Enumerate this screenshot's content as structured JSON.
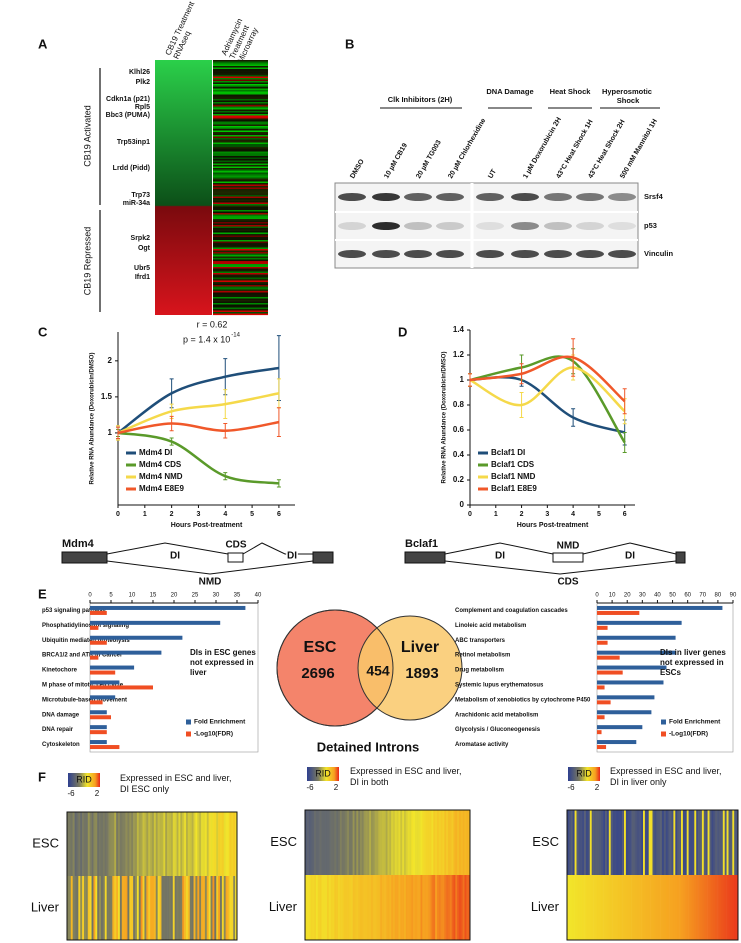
{
  "panel_labels": [
    "A",
    "B",
    "C",
    "D",
    "E",
    "F"
  ],
  "panel_a": {
    "columns": [
      "CB19 Treatment RNAseq",
      "Adriamycin Treatment Microarray"
    ],
    "genes": [
      "Klhl26",
      "Plk2",
      "Cdkn1a (p21)",
      "Rpl5",
      "Bbc3 (PUMA)",
      "Trp53inp1",
      "Lrdd (Pidd)",
      "Trp73",
      "miR-34a",
      "Srpk2",
      "Ogt",
      "Ubr5",
      "Ifrd1"
    ],
    "groups": [
      "CB19 Activated",
      "CB19 Repressed"
    ],
    "correlation": "r = 0.62",
    "p_value": "p = 1.4 x 10",
    "p_exponent": "-14"
  },
  "panel_b": {
    "groups": [
      "Clk Inhibitors (2H)",
      "DNA Damage",
      "Heat Shock",
      "Hyperosmotic Shock"
    ],
    "lanes": [
      "DMSO",
      "10 µM CB19",
      "20 µM TG003",
      "20 µM Chlorhexidine",
      "UT",
      "1 µM Doxorubicin 2H",
      "43°C Heat Shock 1H",
      "43°C Heat Shock 2H",
      "500 mM Mannitol 1H"
    ],
    "bands": [
      "Srsf4",
      "p53",
      "Vinculin"
    ]
  },
  "chart_data": [
    {
      "type": "line",
      "x": [
        0,
        2,
        4,
        6
      ],
      "xlim": [
        0,
        6.6
      ],
      "xticks": [
        0,
        1,
        2,
        3,
        4,
        5,
        6
      ],
      "ylim": [
        0,
        2.4
      ],
      "yticks": [
        1,
        1.5,
        2
      ],
      "x_label": "Hours Post-treatment",
      "y_label": "Relative RNA Abundance (Doxorubicin/DMSO)",
      "legend": "lower left",
      "series": [
        {
          "name": "Mdm4 DI",
          "color": "#1f4e79",
          "values": [
            1,
            1.55,
            1.78,
            1.9
          ],
          "errors": [
            0.08,
            0.2,
            0.25,
            0.45
          ]
        },
        {
          "name": "Mdm4 CDS",
          "color": "#5a9a2a",
          "values": [
            1,
            0.88,
            0.4,
            0.3
          ],
          "errors": [
            0.05,
            0.05,
            0.05,
            0.05
          ]
        },
        {
          "name": "Mdm4 NMD",
          "color": "#f5d94a",
          "values": [
            1,
            1.3,
            1.4,
            1.55
          ],
          "errors": [
            0.1,
            0.1,
            0.2,
            0.2
          ]
        },
        {
          "name": "Mdm4 E8E9",
          "color": "#f0582a",
          "values": [
            1,
            1.13,
            1.03,
            1.15
          ],
          "errors": [
            0.08,
            0.1,
            0.1,
            0.2
          ]
        }
      ]
    },
    {
      "type": "line",
      "x": [
        0,
        2,
        4,
        6
      ],
      "xlim": [
        0,
        6.4
      ],
      "xticks": [
        0,
        1,
        2,
        3,
        4,
        5,
        6
      ],
      "ylim": [
        0,
        1.4
      ],
      "yticks": [
        0,
        0.2,
        0.4,
        0.6,
        0.8,
        1,
        1.2,
        1.4
      ],
      "x_label": "Hours Post-treatment",
      "y_label": "Relative RNA Abundance (Doxorubicin/DMSO)",
      "legend": "lower left",
      "series": [
        {
          "name": "Bclaf1 DI",
          "color": "#1f4e79",
          "values": [
            1,
            1,
            0.7,
            0.58
          ],
          "errors": [
            0.05,
            0.05,
            0.07,
            0.1
          ]
        },
        {
          "name": "Bclaf1 CDS",
          "color": "#5a9a2a",
          "values": [
            1,
            1.1,
            1.15,
            0.5
          ],
          "errors": [
            0.05,
            0.1,
            0.1,
            0.08
          ]
        },
        {
          "name": "Bclaf1 NMD",
          "color": "#f5d94a",
          "values": [
            1,
            0.8,
            1.1,
            0.75
          ],
          "errors": [
            0.05,
            0.1,
            0.1,
            0.1
          ]
        },
        {
          "name": "Bclaf1 E8E9",
          "color": "#f0582a",
          "values": [
            1,
            1.05,
            1.18,
            0.83
          ],
          "errors": [
            0.05,
            0.08,
            0.15,
            0.1
          ]
        }
      ]
    },
    {
      "type": "barh",
      "categories": [
        "p53 signaling pathway",
        "Phosphatidylinositol signaling",
        "Ubiquitin mediated proteolysis",
        "BRCA1/2 and ATR in Cancer",
        "Kinetochore",
        "M phase of mitotic cell cycle",
        "Microtubule-based movement",
        "DNA damage",
        "DNA repair",
        "Cytoskeleton"
      ],
      "xlim": [
        0,
        40
      ],
      "xticks": [
        0,
        5,
        10,
        15,
        20,
        25,
        30,
        35,
        40
      ],
      "annotation": "DIs in ESC genes not expressed in liver",
      "legend": "lower right",
      "series": [
        {
          "name": "Fold Enrichment",
          "color": "#2e5f9a",
          "values": [
            37,
            31,
            22,
            17,
            10.5,
            7,
            6,
            4,
            4,
            4
          ]
        },
        {
          "name": "-Log10(FDR)",
          "color": "#f04e23",
          "values": [
            4,
            2,
            4,
            2,
            6,
            15,
            3,
            5,
            4,
            7
          ]
        }
      ]
    },
    {
      "type": "barh",
      "categories": [
        "Complement and coagulation cascades",
        "Linoleic acid metabolism",
        "ABC transporters",
        "Retinol metabolism",
        "Drug metabolism",
        "Systemic lupus erythematosus",
        "Metabolism of xenobiotics by cytochrome P450",
        "Arachidonic acid metabolism",
        "Glycolysis / Gluconeogenesis",
        "Aromatase activity"
      ],
      "xlim": [
        0,
        90
      ],
      "xticks": [
        0,
        10,
        20,
        30,
        40,
        50,
        60,
        70,
        80,
        90
      ],
      "annotation": "DIs in liver genes not expressed in ESCs",
      "legend": "lower right",
      "series": [
        {
          "name": "Fold Enrichment",
          "color": "#2e5f9a",
          "values": [
            83,
            56,
            52,
            52,
            46,
            44,
            38,
            36,
            30,
            26
          ]
        },
        {
          "name": "-Log10(FDR)",
          "color": "#f04e23",
          "values": [
            28,
            7,
            7,
            15,
            17,
            5,
            9,
            5,
            3,
            6
          ]
        }
      ]
    }
  ],
  "gene_models": [
    {
      "gene": "Mdm4",
      "labels": [
        "DI",
        "CDS",
        "DI",
        "NMD"
      ]
    },
    {
      "gene": "Bclaf1",
      "labels": [
        "DI",
        "NMD",
        "DI",
        "CDS"
      ]
    }
  ],
  "venn": {
    "sets": [
      "ESC",
      "Liver"
    ],
    "exclusive_counts": [
      2696,
      1893
    ],
    "shared_count": 454,
    "title": "Detained Introns"
  },
  "panel_f": {
    "colorbar_label": "RID",
    "colorbar_ticks": [
      -6,
      2
    ],
    "rows": [
      "ESC",
      "Liver"
    ],
    "titles": [
      "Expressed in ESC and liver, DI ESC only",
      "Expressed in ESC and liver, DI in both",
      "Expressed in ESC and liver, DI in liver only"
    ]
  }
}
